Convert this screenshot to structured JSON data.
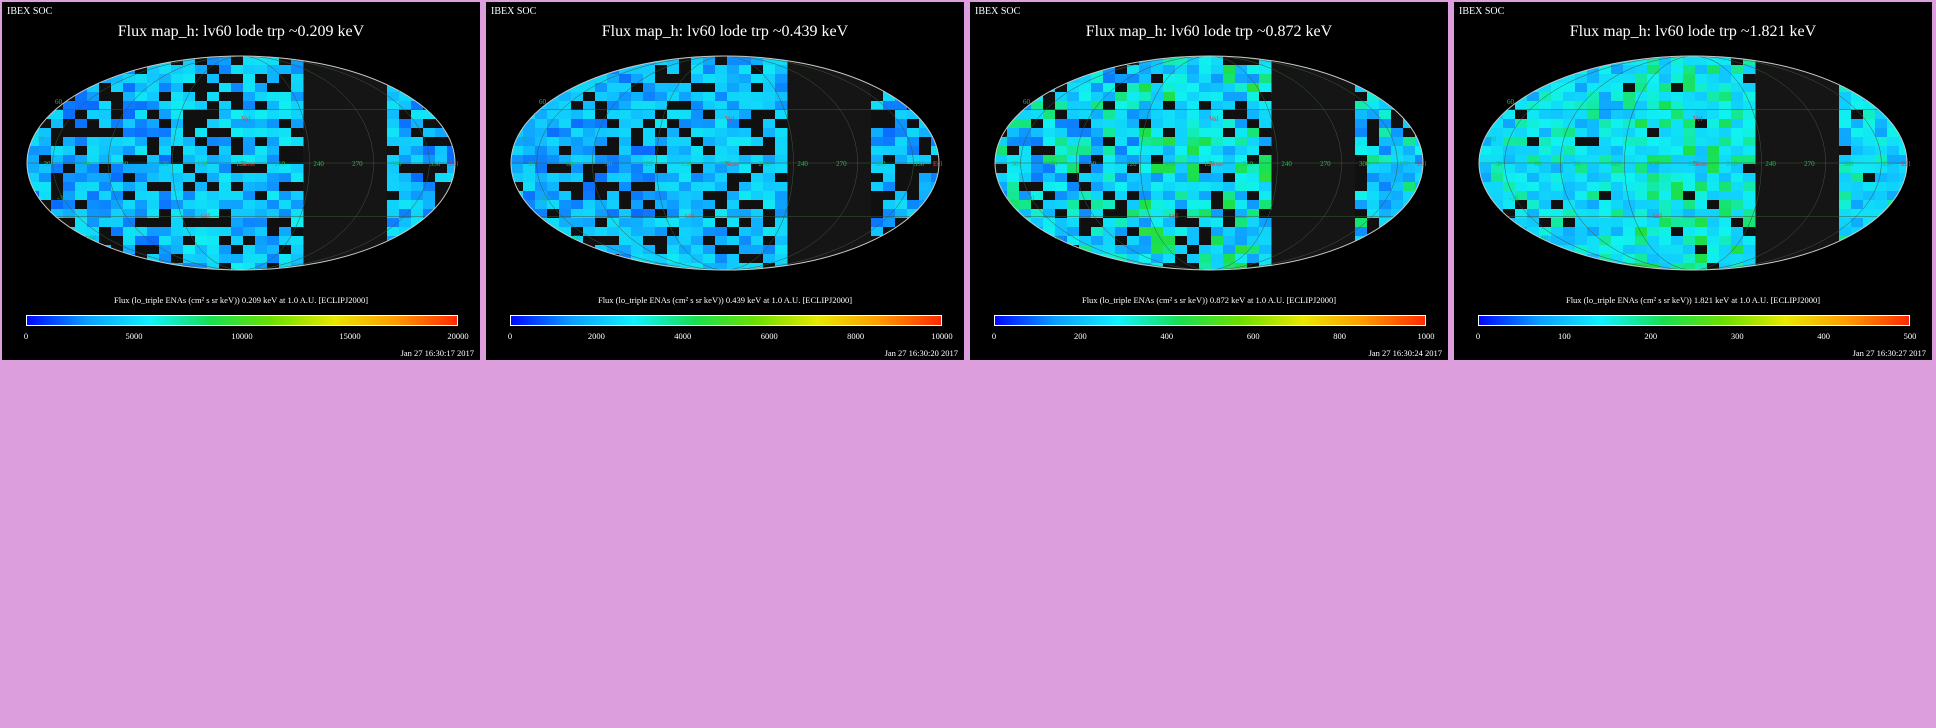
{
  "colors": {
    "background": "#dc9edc",
    "panel": "#000000",
    "colorbar": [
      "#0008ff",
      "#0aa0ff",
      "#10f2ff",
      "#18e050",
      "#6ce000",
      "#e8e800",
      "#ff9a00",
      "#ff2a00"
    ]
  },
  "panels": [
    {
      "org": "IBEX SOC",
      "title": "Flux   map_h: lv60 lode trp ~0.209 keV",
      "colorbar_label": "Flux (lo_triple ENAs (cm² s sr keV)) 0.209 keV at 1.0 A.U. [ECLIPJ2000]",
      "ticks": [
        "0",
        "5000",
        "10000",
        "15000",
        "20000"
      ],
      "timestamp": "Jan 27 16:30:17 2017",
      "mean_level": 0.28,
      "spread": 0.12,
      "empty": 0.24,
      "grid_labels": [
        "60",
        "30",
        "-30",
        "-60",
        "30",
        "60",
        "90",
        "120",
        "150",
        "180",
        "210",
        "240",
        "270",
        "300",
        "330"
      ],
      "marks": [
        "Vel",
        "Nose",
        "tail",
        "Ecl"
      ]
    },
    {
      "org": "IBEX SOC",
      "title": "Flux   map_h: lv60 lode trp ~0.439 keV",
      "colorbar_label": "Flux (lo_triple ENAs (cm² s sr keV)) 0.439 keV at 1.0 A.U. [ECLIPJ2000]",
      "ticks": [
        "0",
        "2000",
        "4000",
        "6000",
        "8000",
        "10000"
      ],
      "timestamp": "Jan 27 16:30:20 2017",
      "mean_level": 0.27,
      "spread": 0.11,
      "empty": 0.22,
      "grid_labels": [
        "60",
        "30",
        "-30",
        "-60",
        "30",
        "60",
        "90",
        "120",
        "150",
        "180",
        "210",
        "240",
        "270",
        "300",
        "330"
      ],
      "marks": [
        "Vel",
        "Nose",
        "tail",
        "Ecl"
      ]
    },
    {
      "org": "IBEX SOC",
      "title": "Flux   map_h: lv60 lode trp ~0.872 keV",
      "colorbar_label": "Flux (lo_triple ENAs (cm² s sr keV)) 0.872 keV at 1.0 A.U. [ECLIPJ2000]",
      "ticks": [
        "0",
        "200",
        "400",
        "600",
        "800",
        "1000"
      ],
      "timestamp": "Jan 27 16:30:24 2017",
      "mean_level": 0.36,
      "spread": 0.18,
      "empty": 0.14,
      "grid_labels": [
        "60",
        "30",
        "-30",
        "-60",
        "30",
        "60",
        "90",
        "120",
        "150",
        "180",
        "210",
        "240",
        "270",
        "300",
        "330"
      ],
      "marks": [
        "Vel",
        "Nose",
        "tail",
        "Ecl"
      ]
    },
    {
      "org": "IBEX SOC",
      "title": "Flux   map_h: lv60 lode trp ~1.821 keV",
      "colorbar_label": "Flux (lo_triple ENAs (cm² s sr keV)) 1.821 keV at 1.0 A.U. [ECLIPJ2000]",
      "ticks": [
        "0",
        "100",
        "200",
        "300",
        "400",
        "500"
      ],
      "timestamp": "Jan 27 16:30:27 2017",
      "mean_level": 0.38,
      "spread": 0.14,
      "empty": 0.04,
      "grid_labels": [
        "60",
        "30",
        "-30",
        "-60",
        "30",
        "60",
        "90",
        "120",
        "150",
        "180",
        "210",
        "240",
        "270",
        "300",
        "330"
      ],
      "marks": [
        "Vel",
        "Nose",
        "tail",
        "Ecl"
      ]
    }
  ]
}
